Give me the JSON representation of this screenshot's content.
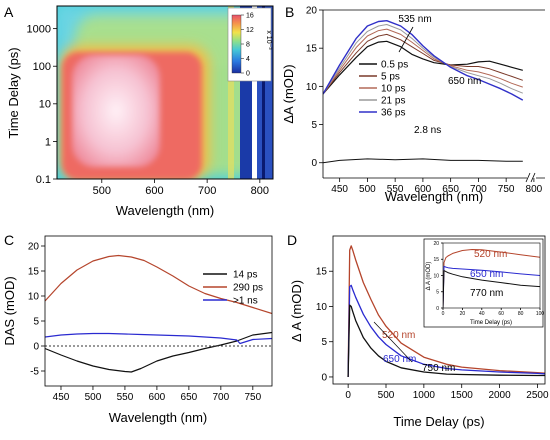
{
  "chart_data": [
    {
      "panel": "A",
      "type": "heatmap",
      "xlabel": "Wavelength (nm)",
      "ylabel": "Time Delay (ps)",
      "xlim": [
        415,
        825
      ],
      "ylim": [
        0.1,
        4000
      ],
      "y_scale": "log",
      "x_ticks": [
        "500",
        "600",
        "700",
        "800"
      ],
      "y_ticks": [
        "0.1",
        "1",
        "10",
        "100",
        "1000"
      ],
      "colorbar": {
        "ticks": [
          "0",
          "4",
          "8",
          "12",
          "16"
        ],
        "exponent": "x 10⁻³",
        "range": [
          0,
          16
        ]
      },
      "regions": [
        {
          "x": [
            460,
            650
          ],
          "y": [
            0.3,
            250
          ],
          "value": 15
        },
        {
          "x": [
            430,
            700
          ],
          "y": [
            0.2,
            400
          ],
          "value": 11
        },
        {
          "x": [
            415,
            780
          ],
          "y": [
            0.12,
            2000
          ],
          "value": 5
        }
      ],
      "legend": "top-right"
    },
    {
      "panel": "B",
      "type": "line",
      "xlabel": "Wavelength (nm)",
      "ylabel": "ΔA (mOD)",
      "xlim": [
        420,
        820
      ],
      "ylim": [
        -2,
        20
      ],
      "x_ticks": [
        "450",
        "500",
        "550",
        "600",
        "650",
        "700",
        "750",
        "800"
      ],
      "y_ticks": [
        "0",
        "5",
        "10",
        "15",
        "20"
      ],
      "annotations": [
        "535 nm",
        "650 nm",
        "2.8 ns"
      ],
      "legend": "center-right",
      "series": [
        {
          "name": "0.5 ps",
          "color": "#111111",
          "x": [
            420,
            450,
            480,
            500,
            520,
            535,
            560,
            580,
            600,
            620,
            650,
            680,
            700,
            720,
            740,
            760,
            780
          ],
          "y": [
            9,
            11.5,
            13.8,
            15.2,
            15.8,
            15.9,
            15.2,
            14.2,
            13.6,
            13.1,
            12.8,
            12.9,
            13.2,
            13.3,
            12.9,
            12.5,
            12.1
          ]
        },
        {
          "name": "5 ps",
          "color": "#7a3a2a",
          "x": [
            420,
            450,
            480,
            500,
            520,
            535,
            560,
            580,
            600,
            620,
            650,
            680,
            700,
            720,
            740,
            760,
            780
          ],
          "y": [
            9,
            11.8,
            14.4,
            15.9,
            16.6,
            16.8,
            16.1,
            15.2,
            14.3,
            13.4,
            12.8,
            12.6,
            12.6,
            12.3,
            11.8,
            11.3,
            10.8
          ]
        },
        {
          "name": "10 ps",
          "color": "#b36a58",
          "x": [
            420,
            450,
            480,
            500,
            520,
            535,
            560,
            580,
            600,
            620,
            650,
            680,
            700,
            720,
            740,
            760,
            780
          ],
          "y": [
            9,
            12.1,
            15.1,
            16.6,
            17.3,
            17.5,
            16.8,
            15.8,
            14.7,
            13.6,
            12.7,
            12.1,
            11.9,
            11.5,
            11,
            10.4,
            9.9
          ]
        },
        {
          "name": "21 ps",
          "color": "#9a9a9a",
          "x": [
            420,
            450,
            480,
            500,
            520,
            535,
            560,
            580,
            600,
            620,
            650,
            680,
            700,
            720,
            740,
            760,
            780
          ],
          "y": [
            9,
            12.4,
            15.7,
            17.2,
            17.9,
            18.1,
            17.4,
            16.3,
            15,
            13.8,
            12.6,
            11.8,
            11.4,
            11,
            10.4,
            9.7,
            9.1
          ]
        },
        {
          "name": "36 ps",
          "color": "#3030c8",
          "x": [
            420,
            450,
            480,
            500,
            520,
            535,
            560,
            580,
            600,
            620,
            650,
            680,
            700,
            720,
            740,
            760,
            780
          ],
          "y": [
            9,
            12.8,
            16.3,
            17.9,
            18.5,
            18.6,
            17.9,
            16.8,
            15.3,
            14,
            12.5,
            11.4,
            10.9,
            10.3,
            9.7,
            9,
            8.2
          ]
        },
        {
          "name": "2.8 ns",
          "color": "#111111",
          "x": [
            420,
            450,
            500,
            550,
            600,
            650,
            700,
            750,
            780
          ],
          "y": [
            0,
            0.3,
            0.5,
            0.4,
            0.5,
            0.3,
            0.3,
            0.2,
            0.2
          ]
        }
      ]
    },
    {
      "panel": "C",
      "type": "line",
      "xlabel": "Wavelength (nm)",
      "ylabel": "DAS (mOD)",
      "xlim": [
        425,
        780
      ],
      "ylim": [
        -8,
        22
      ],
      "x_ticks": [
        "450",
        "500",
        "550",
        "600",
        "650",
        "700",
        "750"
      ],
      "y_ticks": [
        "-5",
        "0",
        "5",
        "10",
        "15",
        "20"
      ],
      "legend": "top-right",
      "series": [
        {
          "name": "14 ps",
          "color": "#111111",
          "x": [
            425,
            450,
            475,
            500,
            525,
            550,
            560,
            575,
            600,
            625,
            650,
            675,
            700,
            725,
            750,
            780
          ],
          "y": [
            -0.5,
            -1.8,
            -3,
            -4,
            -4.7,
            -5.1,
            -5.2,
            -4.5,
            -3,
            -2,
            -1.3,
            -0.5,
            0.2,
            1,
            2.2,
            2.7
          ]
        },
        {
          "name": "290 ps",
          "color": "#b5452c",
          "x": [
            425,
            450,
            475,
            500,
            525,
            540,
            560,
            580,
            600,
            625,
            650,
            675,
            700,
            725,
            750,
            780
          ],
          "y": [
            9,
            12.5,
            15.2,
            17,
            17.9,
            18.1,
            17.8,
            17.1,
            15.8,
            14,
            12,
            10.5,
            9.5,
            8.7,
            7.7,
            6.5
          ]
        },
        {
          "name": ">1 ns",
          "color": "#2a2ad0",
          "x": [
            425,
            450,
            475,
            500,
            525,
            550,
            575,
            600,
            625,
            650,
            675,
            700,
            725,
            730,
            750,
            780
          ],
          "y": [
            1.8,
            2.2,
            2.4,
            2.5,
            2.5,
            2.4,
            2.3,
            2.2,
            2.1,
            2,
            1.8,
            1.6,
            1.2,
            0.5,
            1.3,
            1.5
          ]
        },
        {
          "name": "",
          "color": "#333333",
          "x": [
            425,
            780
          ],
          "y": [
            0,
            0
          ]
        }
      ]
    },
    {
      "panel": "D",
      "type": "line",
      "xlabel": "Time Delay (ps)",
      "ylabel": "Δ A (mOD)",
      "xlim": [
        -200,
        2600
      ],
      "ylim": [
        -1,
        20
      ],
      "x_ticks": [
        "0",
        "500",
        "1000",
        "1500",
        "2000",
        "2500"
      ],
      "y_ticks": [
        "0",
        "5",
        "10",
        "15"
      ],
      "annotations": [
        "520 nm",
        "650 nm",
        "750 nm"
      ],
      "series": [
        {
          "name": "520 nm",
          "color": "#b5452c",
          "x": [
            0,
            20,
            40,
            60,
            100,
            200,
            300,
            400,
            500,
            700,
            1000,
            1300,
            1500,
            2000,
            2500,
            2600
          ],
          "y": [
            0,
            18,
            18.6,
            18,
            16.6,
            13.4,
            11,
            8.8,
            7.2,
            4.8,
            2.8,
            1.8,
            1.4,
            0.9,
            0.6,
            0.55
          ]
        },
        {
          "name": "650 nm",
          "color": "#2a2ad0",
          "x": [
            0,
            20,
            40,
            60,
            100,
            200,
            300,
            400,
            500,
            700,
            1000,
            1300,
            1500,
            2000,
            2500,
            2600
          ],
          "y": [
            0,
            12.8,
            13,
            12.4,
            11.3,
            8.9,
            7.1,
            5.7,
            4.6,
            3,
            1.8,
            1.2,
            1,
            0.7,
            0.5,
            0.45
          ]
        },
        {
          "name": "750 nm",
          "color": "#111111",
          "x": [
            0,
            20,
            40,
            60,
            100,
            200,
            300,
            400,
            500,
            700,
            1000,
            1300,
            1500,
            2000,
            2500,
            2600
          ],
          "y": [
            0,
            10.2,
            10,
            9.3,
            8,
            5.6,
            4.1,
            3,
            2.2,
            1.3,
            0.7,
            0.4,
            0.35,
            0.25,
            0.2,
            0.2
          ]
        }
      ]
    },
    {
      "panel": "D-inset",
      "type": "line",
      "xlabel": "Time Delay (ps)",
      "ylabel": "Δ A (mOD)",
      "xlim": [
        0,
        100
      ],
      "ylim": [
        0,
        20
      ],
      "x_ticks": [
        "0",
        "20",
        "40",
        "60",
        "80",
        "100"
      ],
      "y_ticks": [
        "0",
        "5",
        "10",
        "15",
        "20"
      ],
      "annotations": [
        "520 nm",
        "650 nm",
        "770 nm"
      ],
      "series": [
        {
          "name": "520 nm",
          "color": "#b5452c",
          "x": [
            0,
            1,
            3,
            5,
            10,
            20,
            30,
            40,
            60,
            80,
            100
          ],
          "y": [
            0,
            14,
            15.5,
            16,
            16.8,
            17.7,
            18,
            17.9,
            17.2,
            16.4,
            15.6
          ]
        },
        {
          "name": "650 nm",
          "color": "#2a2ad0",
          "x": [
            0,
            1,
            3,
            5,
            10,
            20,
            40,
            60,
            80,
            100
          ],
          "y": [
            0,
            12.8,
            12.6,
            12.4,
            12.2,
            12,
            11.6,
            11.1,
            10.5,
            10
          ]
        },
        {
          "name": "770 nm",
          "color": "#111111",
          "x": [
            0,
            1,
            3,
            5,
            10,
            20,
            40,
            60,
            80,
            100
          ],
          "y": [
            0,
            11.5,
            11.2,
            10.9,
            10.4,
            9.6,
            8.6,
            7.8,
            7,
            6.6
          ]
        }
      ]
    }
  ],
  "panel_labels": [
    "A",
    "B",
    "C",
    "D"
  ],
  "heat_colors": [
    "#1a2ea0",
    "#2a78e0",
    "#46c8d6",
    "#8fe08a",
    "#f2e24a",
    "#f5964a",
    "#e8506a",
    "#f4bcd0",
    "#fff2f6"
  ]
}
